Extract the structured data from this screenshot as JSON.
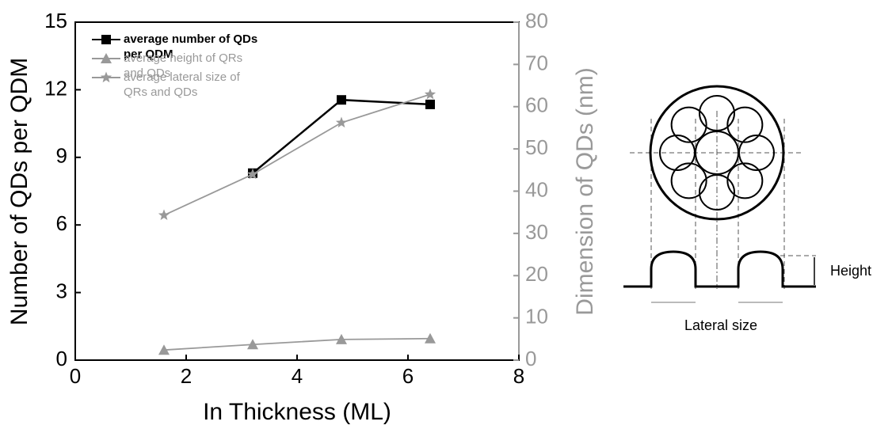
{
  "chart_data": {
    "type": "line",
    "x_label": "In Thickness (ML)",
    "y_label": "Number of QDs per QDM",
    "y2_label": "Dimension of QDs (nm)",
    "x": [
      1.6,
      3.2,
      4.8,
      6.4
    ],
    "series": [
      {
        "name": "average number of QDs per QDM",
        "color": "#000000",
        "marker": "square",
        "values": [
          null,
          8.3,
          11.55,
          11.35
        ]
      },
      {
        "name": "average height of QRs and QDs",
        "color": "#999999",
        "marker": "triangle",
        "axis": "y2",
        "values": [
          2.4,
          3.7,
          4.9,
          5.1
        ]
      },
      {
        "name": "average lateral size of QRs and QDs",
        "color": "#999999",
        "marker": "star",
        "axis": "y2",
        "values": [
          34.3,
          44,
          56.2,
          62.9
        ]
      }
    ],
    "xlim": [
      0,
      8
    ],
    "xticks": [
      0,
      2,
      4,
      6,
      8
    ],
    "ylim": [
      0,
      15
    ],
    "yticks": [
      0,
      3,
      6,
      9,
      12,
      15
    ],
    "y2lim": [
      0,
      80
    ],
    "y2ticks": [
      0,
      10,
      20,
      30,
      40,
      50,
      60,
      70,
      80
    ],
    "y2_color": "#999999"
  },
  "diagram": {
    "height_label": "Height",
    "lateral_label": "Lateral size"
  }
}
